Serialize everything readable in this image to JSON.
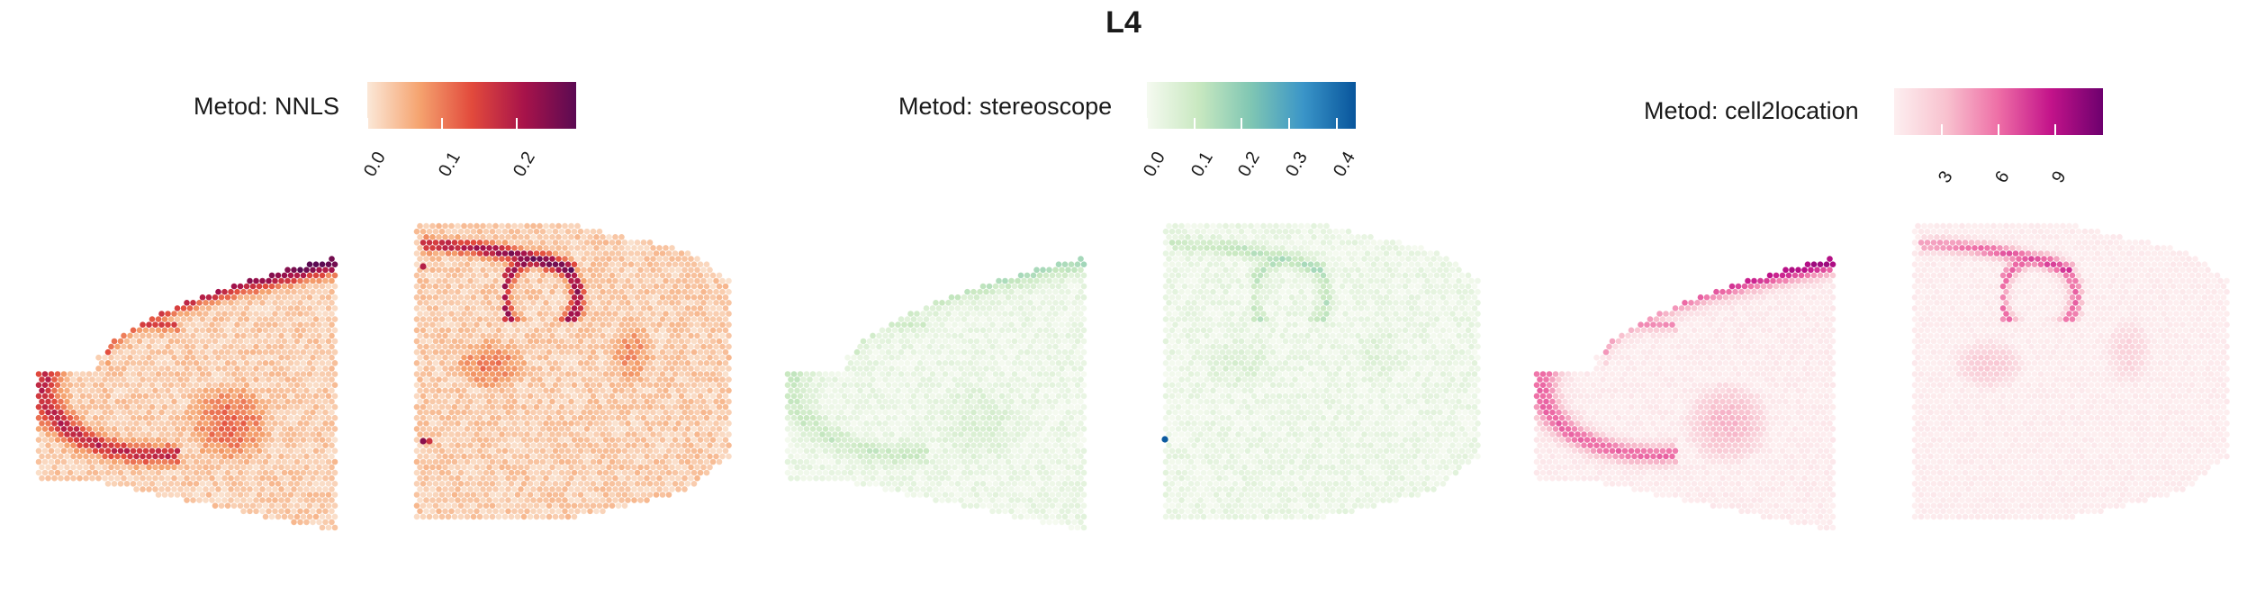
{
  "title": "L4",
  "panels": [
    {
      "legend_label": "Metod: NNLS",
      "ticks": [
        "0.0",
        "0.1",
        "0.2"
      ],
      "tick_values": [
        0.0,
        0.1,
        0.2
      ],
      "range": [
        0,
        0.28
      ],
      "colors": [
        "#fbe8d8",
        "#f5a36f",
        "#e24a3c",
        "#a8134a",
        "#5b0a52"
      ]
    },
    {
      "legend_label": "Metod: stereoscope",
      "ticks": [
        "0.0",
        "0.1",
        "0.2",
        "0.3",
        "0.4"
      ],
      "tick_values": [
        0.0,
        0.1,
        0.2,
        0.3,
        0.4
      ],
      "range": [
        0,
        0.44
      ],
      "colors": [
        "#f5faf0",
        "#c8e8c0",
        "#7fc6b3",
        "#3a95c8",
        "#08559c"
      ]
    },
    {
      "legend_label": "Metod: cell2location",
      "ticks": [
        "3",
        "6",
        "9"
      ],
      "tick_values": [
        3,
        6,
        9
      ],
      "range": [
        0.5,
        11.5
      ],
      "colors": [
        "#fdeff0",
        "#f8c2cf",
        "#ee6ea6",
        "#c3138a",
        "#6d006e"
      ]
    }
  ],
  "chart_data": {
    "type": "heatmap",
    "title": "L4",
    "facets": [
      "Metod: NNLS",
      "Metod: stereoscope",
      "Metod: cell2location"
    ],
    "description_values": {
      "NNLS": {
        "min": 0.0,
        "max": 0.28
      },
      "stereoscope": {
        "min": 0.0,
        "max": 0.44
      },
      "cell2location": {
        "min": 0.5,
        "max": 11.5
      }
    }
  }
}
